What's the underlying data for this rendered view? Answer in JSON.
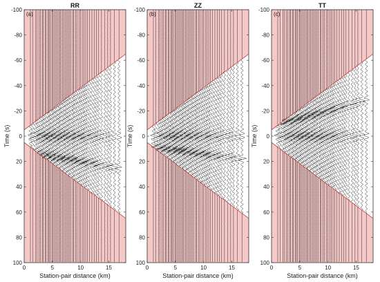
{
  "chart_data": {
    "type": "line",
    "shared": {
      "xlabel": "Station-pair distance (km)",
      "ylabel": "Time (s)",
      "xlim": [
        0,
        18
      ],
      "ylim": [
        -100,
        100
      ],
      "y_reversed": true,
      "xticks": [
        0,
        5,
        10,
        15
      ],
      "yticks": [
        -100,
        -80,
        -60,
        -40,
        -20,
        0,
        20,
        40,
        60,
        80,
        100
      ],
      "shaded_color": "#f6c9c9",
      "shade_boundary_color": "#c0504d",
      "boundary_lines": [
        {
          "points": [
            [
              0,
              -5
            ],
            [
              18,
              -65
            ]
          ]
        },
        {
          "points": [
            [
              0,
              5
            ],
            [
              18,
              65
            ]
          ]
        }
      ],
      "trace_distances_km": [
        1.1,
        1.5,
        2.0,
        2.3,
        2.6,
        2.9,
        3.2,
        3.4,
        3.7,
        3.9,
        4.2,
        4.4,
        4.6,
        4.9,
        5.1,
        5.3,
        5.6,
        5.8,
        6.1,
        6.3,
        6.5,
        6.8,
        7.0,
        7.3,
        7.5,
        7.8,
        8.0,
        8.3,
        8.6,
        8.8,
        9.1,
        9.4,
        9.7,
        10.0,
        10.3,
        10.6,
        10.9,
        11.2,
        11.6,
        12.0,
        12.4,
        12.8,
        13.2,
        13.7,
        14.3,
        14.8,
        15.3,
        16.0,
        16.8
      ]
    },
    "panels": [
      {
        "label": "(a)",
        "title": "RR",
        "arrival_center_s": 12,
        "arrival_slope": 0.8
      },
      {
        "label": "(b)",
        "title": "ZZ",
        "arrival_center_s": 8,
        "arrival_slope": 0.6
      },
      {
        "label": "(c)",
        "title": "TT",
        "arrival_center_s": -8,
        "arrival_slope": -1.2
      }
    ]
  }
}
